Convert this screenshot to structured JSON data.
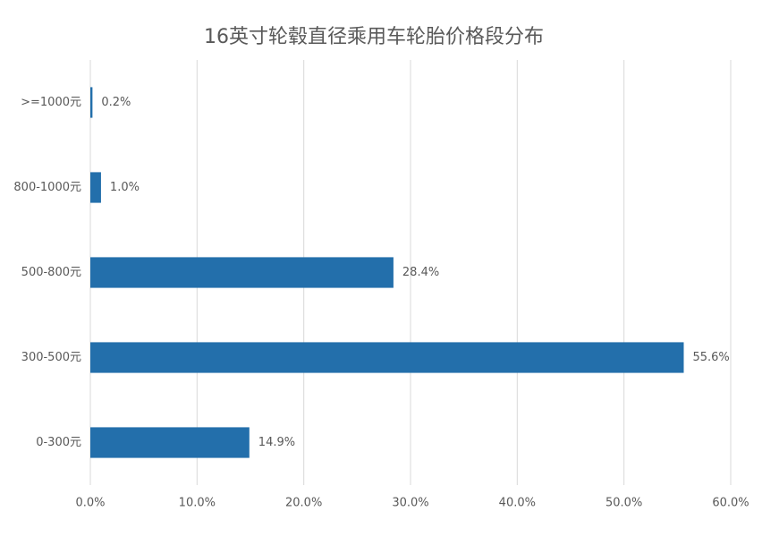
{
  "chart_data": {
    "type": "hbar",
    "title": "16英寸轮毂直径乘用车轮胎价格段分布",
    "categories": [
      ">=1000元",
      "800-1000元",
      "500-800元",
      "300-500元",
      "0-300元"
    ],
    "values": [
      0.2,
      1.0,
      28.4,
      55.6,
      14.9
    ],
    "value_labels": [
      "0.2%",
      "1.0%",
      "28.4%",
      "55.6%",
      "14.9%"
    ],
    "color": "#236fab",
    "xlim": [
      0,
      60
    ],
    "xticks": [
      {
        "value": 0,
        "label": "0.0%"
      },
      {
        "value": 10,
        "label": "10.0%"
      },
      {
        "value": 20,
        "label": "20.0%"
      },
      {
        "value": 30,
        "label": "30.0%"
      },
      {
        "value": 40,
        "label": "40.0%"
      },
      {
        "value": 50,
        "label": "50.0%"
      },
      {
        "value": 60,
        "label": "60.0%"
      }
    ],
    "grid": true
  }
}
